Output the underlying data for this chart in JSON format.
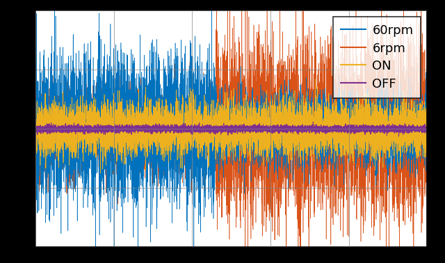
{
  "series": [
    {
      "label": "60rpm",
      "color": "#0072BD"
    },
    {
      "label": "6rpm",
      "color": "#D95319"
    },
    {
      "label": "ON",
      "color": "#EDB120"
    },
    {
      "label": "OFF",
      "color": "#7E2F8E"
    }
  ],
  "background_color": "#000000",
  "axes_color": "#ffffff",
  "grid_color": "#808080",
  "ylim": [
    -1.0,
    1.0
  ],
  "xlim": [
    0,
    1
  ],
  "font_size": 13,
  "transition": 0.46,
  "blue_std1": 0.3,
  "blue_std2": 0.15,
  "orange_std1": 0.18,
  "orange_std2": 0.35,
  "on_std": 0.11,
  "off_std": 0.015
}
